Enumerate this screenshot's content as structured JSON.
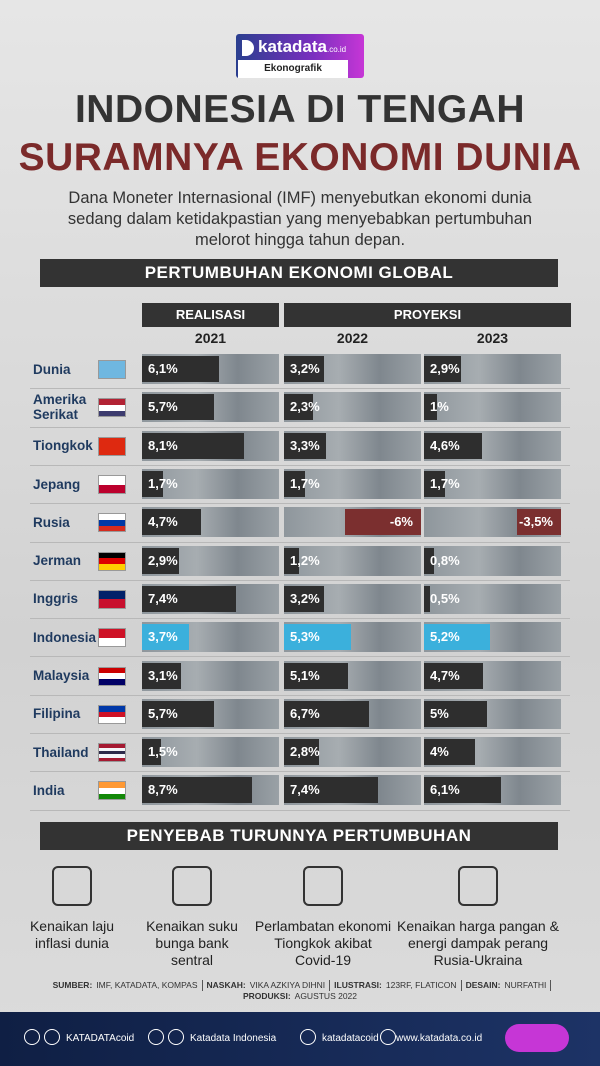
{
  "header": {
    "logo": "katadata",
    "logo_suffix": ".co.id",
    "badge": "Ekonografik",
    "title_line1": "INDONESIA DI TENGAH",
    "title_line2": "SURAMNYA EKONOMI DUNIA",
    "subtitle": "Dana Moneter Internasional (IMF) menyebutkan ekonomi dunia sedang dalam ketidakpastian yang menyebabkan pertumbuhan melorot hingga tahun depan."
  },
  "chart_data": {
    "type": "bar",
    "title": "PERTUMBUHAN EKONOMI GLOBAL",
    "group_labels": [
      "REALISASI",
      "PROYEKSI"
    ],
    "categories": [
      "Dunia",
      "Amerika Serikat",
      "Tiongkok",
      "Jepang",
      "Rusia",
      "Jerman",
      "Inggris",
      "Indonesia",
      "Malaysia",
      "Filipina",
      "Thailand",
      "India"
    ],
    "series": [
      {
        "name": "2021",
        "color": "#2e2e2e",
        "values": [
          6.1,
          5.7,
          8.1,
          1.7,
          4.7,
          2.9,
          7.4,
          3.7,
          3.1,
          5.7,
          1.5,
          8.7
        ],
        "value_labels": [
          "6,1%",
          "5,7%",
          "8,1%",
          "1,7%",
          "4,7%",
          "2,9%",
          "7,4%",
          "3,7%",
          "3,1%",
          "5,7%",
          "1,5%",
          "8,7%"
        ]
      },
      {
        "name": "2022",
        "color": "#2e2e2e",
        "values": [
          3.2,
          2.3,
          3.3,
          1.7,
          -6,
          1.2,
          3.2,
          5.3,
          5.1,
          6.7,
          2.8,
          7.4
        ],
        "value_labels": [
          "3,2%",
          "2,3%",
          "3,3%",
          "1,7%",
          "-6%",
          "1,2%",
          "3,2%",
          "5,3%",
          "5,1%",
          "6,7%",
          "2,8%",
          "7,4%"
        ]
      },
      {
        "name": "2023",
        "color": "#2e2e2e",
        "values": [
          2.9,
          1,
          4.6,
          1.7,
          -3.5,
          0.8,
          0.5,
          5.2,
          4.7,
          5,
          4,
          6.1
        ],
        "value_labels": [
          "2,9%",
          "1%",
          "4,6%",
          "1,7%",
          "-3,5%",
          "0,8%",
          "0,5%",
          "5,2%",
          "4,7%",
          "5%",
          "4%",
          "6,1%"
        ]
      }
    ],
    "negative_color": "#7b2f2f",
    "highlight_category": "Indonesia",
    "highlight_color": "#3bb0dc"
  },
  "causes": {
    "title": "PENYEBAB TURUNNYA PERTUMBUHAN",
    "items": [
      "Kenaikan laju inflasi dunia",
      "Kenaikan suku bunga bank sentral",
      "Perlambatan ekonomi Tiongkok akibat Covid-19",
      "Kenaikan harga pangan & energi dampak perang Rusia-Ukraina"
    ]
  },
  "credits": [
    {
      "label": "SUMBER:",
      "value": "IMF, KATADATA, KOMPAS"
    },
    {
      "label": "NASKAH:",
      "value": "VIKA AZKIYA DIHNI"
    },
    {
      "label": "ILUSTRASI:",
      "value": "123RF, FLATICON"
    },
    {
      "label": "DESAIN:",
      "value": "NURFATHI"
    },
    {
      "label": "PRODUKSI:",
      "value": "AGUSTUS 2022"
    }
  ],
  "social": [
    "KATADATAcoid",
    "Katadata Indonesia",
    "katadatacoid",
    "www.katadata.co.id"
  ]
}
